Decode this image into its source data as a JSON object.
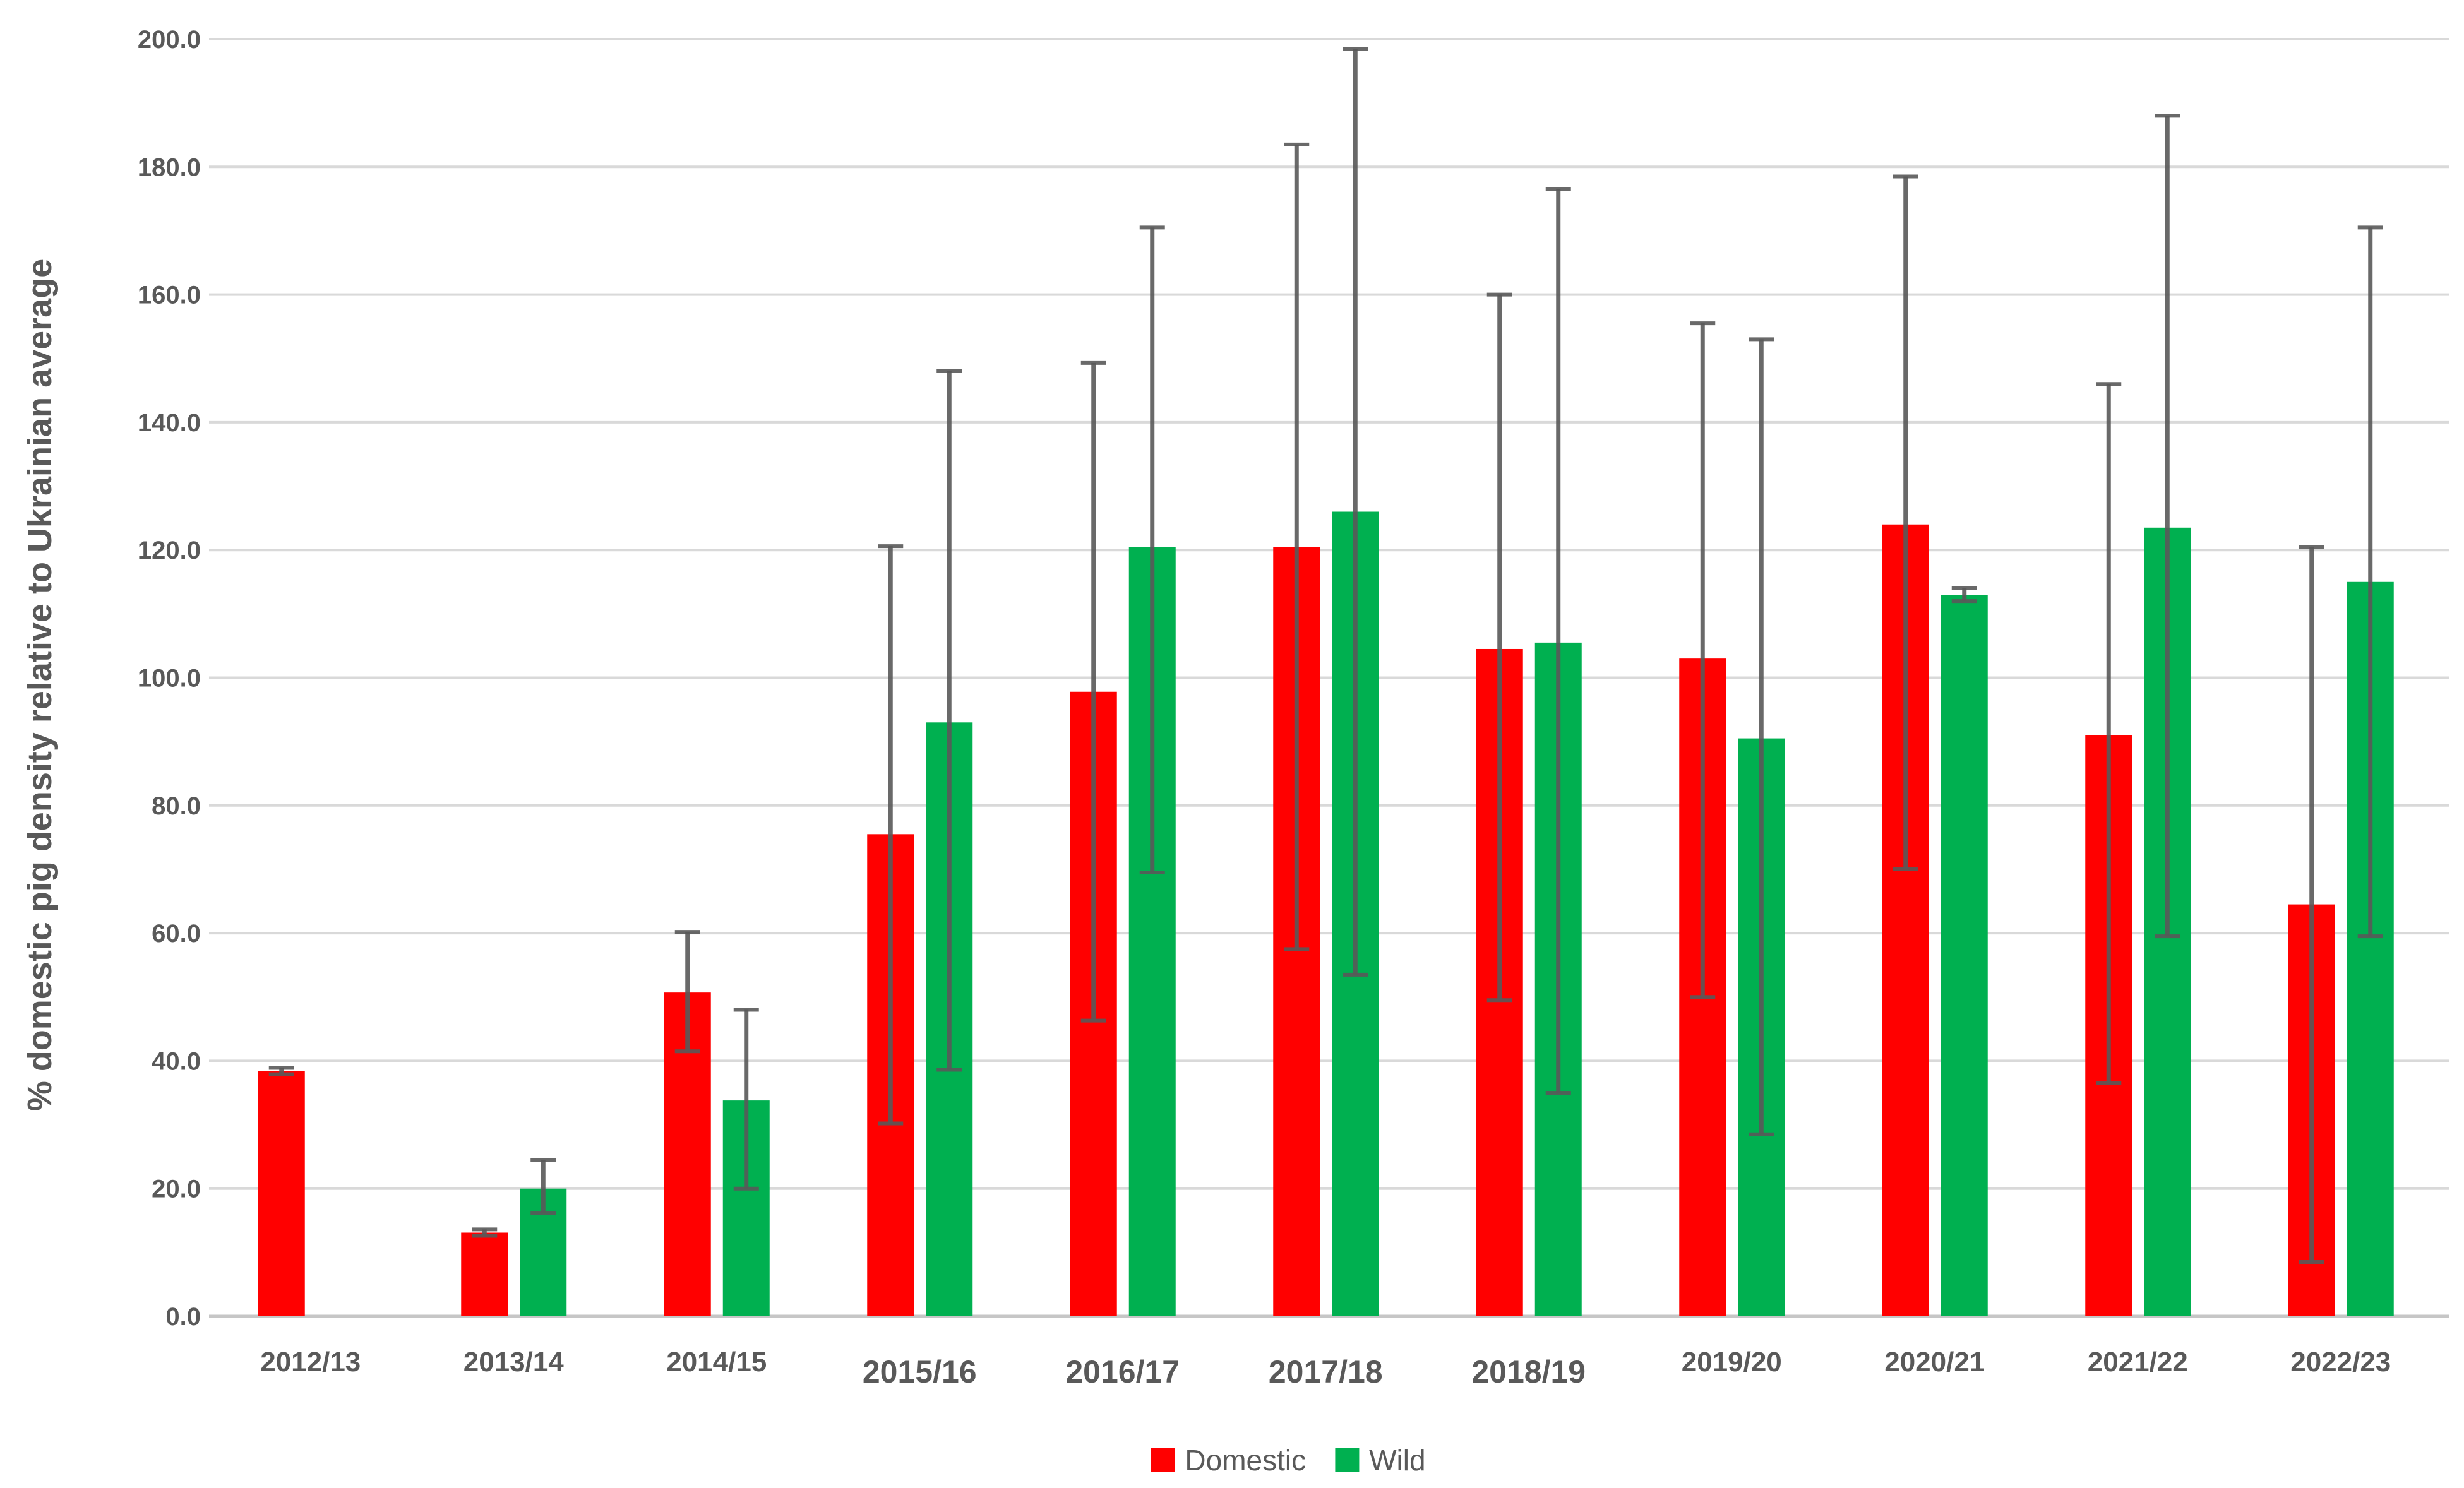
{
  "chart_data": {
    "type": "bar",
    "ylabel": "% domestic pig density relative to Ukrainian average",
    "ylim": [
      0,
      200
    ],
    "ytick_step": 20,
    "ytick_decimals": 1,
    "grid": true,
    "legend_position": "bottom",
    "categories": [
      "2012/13",
      "2013/14",
      "2014/15",
      "2015/16",
      "2016/17",
      "2017/18",
      "2018/19",
      "2019/20",
      "2020/21",
      "2021/22",
      "2022/23"
    ],
    "large_label_categories": [
      "2015/16",
      "2016/17",
      "2017/18",
      "2018/19"
    ],
    "series": [
      {
        "name": "Domestic",
        "color": "#FF0000",
        "values": [
          38.4,
          13.1,
          50.7,
          75.5,
          97.8,
          120.5,
          104.5,
          103.0,
          124.0,
          91.0,
          64.5
        ],
        "err_low": [
          37.9,
          12.6,
          41.5,
          30.2,
          46.3,
          57.5,
          49.5,
          50.0,
          70.0,
          36.5,
          8.5
        ],
        "err_high": [
          38.9,
          13.6,
          60.2,
          120.6,
          149.3,
          183.5,
          160.0,
          155.5,
          178.5,
          146.0,
          120.5
        ]
      },
      {
        "name": "Wild",
        "color": "#00B050",
        "values": [
          null,
          20.0,
          33.8,
          93.0,
          120.5,
          126.0,
          105.5,
          90.5,
          113.0,
          123.5,
          115.0
        ],
        "err_low": [
          null,
          16.2,
          20.0,
          38.6,
          69.5,
          53.5,
          35.0,
          28.5,
          112.0,
          59.5,
          59.5
        ],
        "err_high": [
          null,
          24.5,
          48.0,
          148.0,
          170.5,
          198.5,
          176.5,
          153.0,
          114.0,
          188.0,
          170.5
        ]
      }
    ],
    "colors": {
      "error_bar": "#595959",
      "gridline": "#D9D9D9",
      "zero_line": "#C6C6C6",
      "tick_label": "#595959"
    }
  },
  "legend": {
    "items": [
      {
        "label": "Domestic",
        "color": "#FF0000"
      },
      {
        "label": "Wild",
        "color": "#00B050"
      }
    ]
  }
}
